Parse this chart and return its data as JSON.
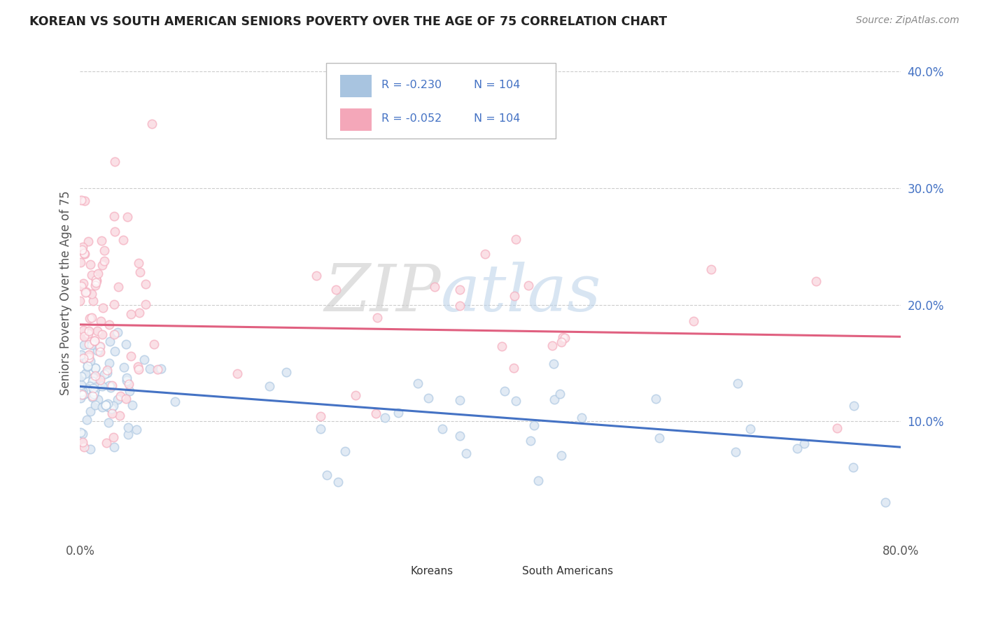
{
  "title": "KOREAN VS SOUTH AMERICAN SENIORS POVERTY OVER THE AGE OF 75 CORRELATION CHART",
  "source": "Source: ZipAtlas.com",
  "ylabel": "Seniors Poverty Over the Age of 75",
  "xlim": [
    0.0,
    0.8
  ],
  "ylim": [
    0.0,
    0.42
  ],
  "yticks_right": [
    0.1,
    0.2,
    0.3,
    0.4
  ],
  "ytick_labels_right": [
    "10.0%",
    "20.0%",
    "30.0%",
    "40.0%"
  ],
  "korean_color": "#a8c4e0",
  "sa_color": "#f4a7b9",
  "korean_line_color": "#4472c4",
  "sa_line_color": "#e06080",
  "watermark_zip": "ZIP",
  "watermark_atlas": "atlas",
  "background_color": "#ffffff",
  "grid_color": "#cccccc",
  "title_color": "#222222",
  "legend_r_color": "#4472c4",
  "text_color": "#555555"
}
